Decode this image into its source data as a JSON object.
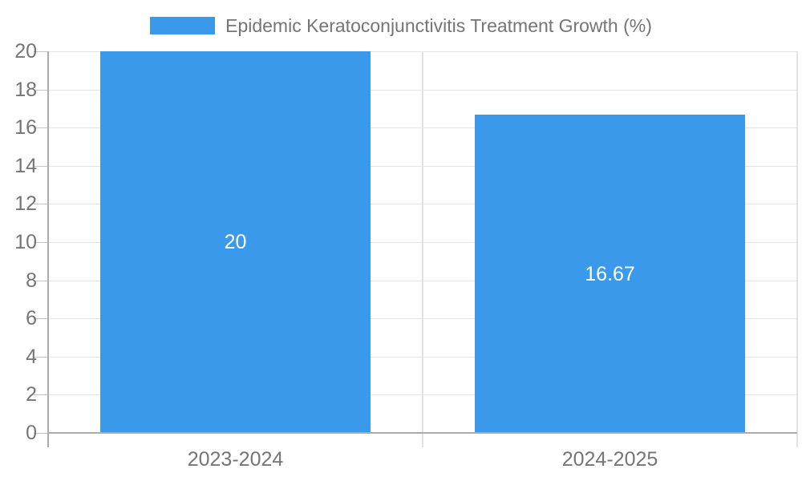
{
  "colors": {
    "bar": "#3B99EC",
    "grid": "#E5E5E5",
    "divider": "#E2E2E2",
    "axis": "#ABABAB",
    "tick": "#C4C4C4",
    "text": "#757575",
    "value_label": "#FFFFFF",
    "background": "#FFFFFF"
  },
  "chart_data": {
    "type": "bar",
    "title": "Epidemic Keratoconjunctivitis Treatment Growth (%)",
    "categories": [
      "2023-2024",
      "2024-2025"
    ],
    "values": [
      20,
      16.67
    ],
    "value_labels": [
      "20",
      "16.67"
    ],
    "xlabel": "",
    "ylabel": "",
    "ylim": [
      0,
      20
    ],
    "ytick_step": 2,
    "grid": true,
    "legend_position": "top-center",
    "legend_entries": [
      "Epidemic Keratoconjunctivitis Treatment Growth (%)"
    ],
    "value_label_position": "inside-center",
    "bar_width_fraction": 0.72
  }
}
